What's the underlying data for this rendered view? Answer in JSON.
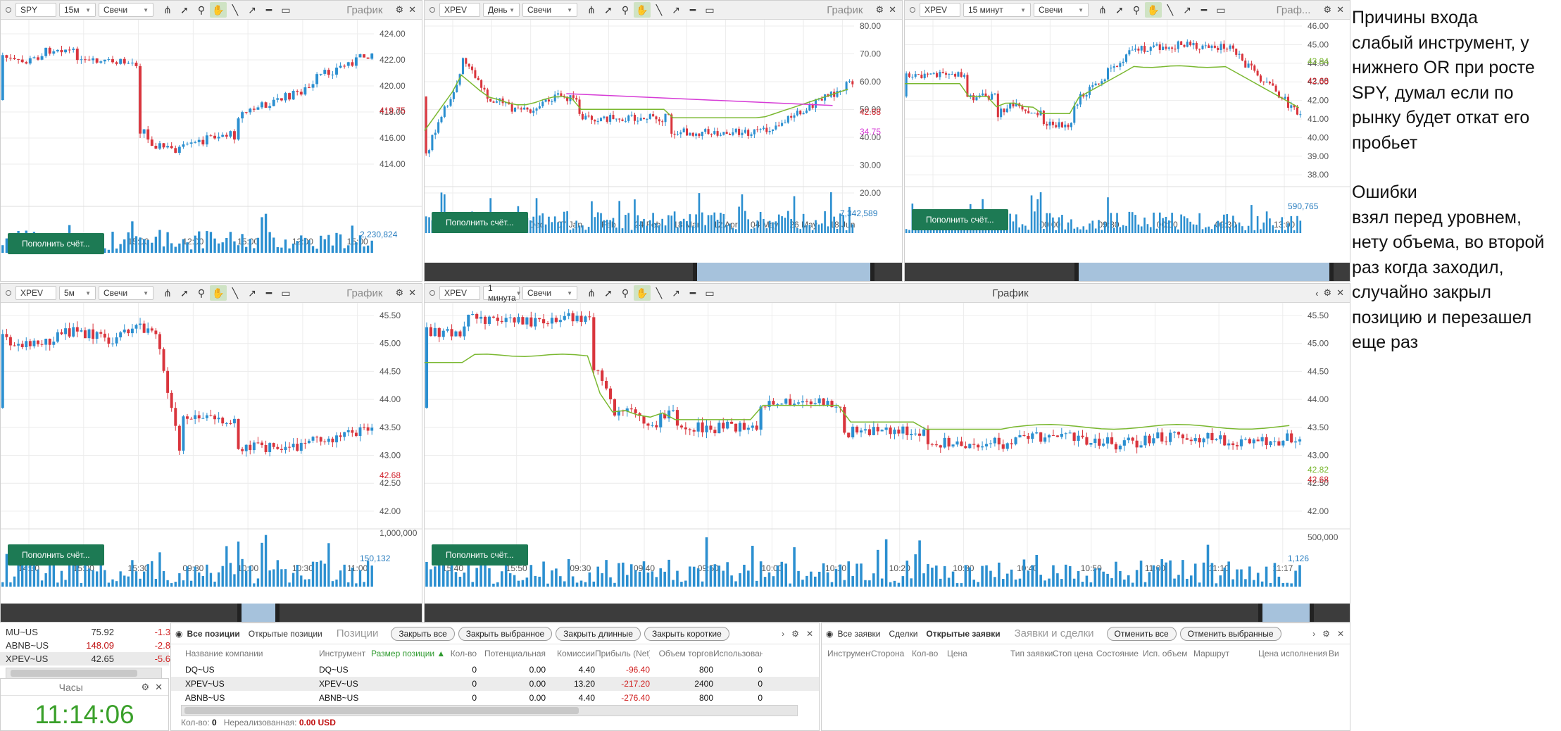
{
  "colors": {
    "up": "#2b8fd0",
    "down": "#d9353d",
    "ma": "#7ab830",
    "magenta": "#d63bd6",
    "volume": "#2b8fd0",
    "deposit_bg": "#1d7a54",
    "price_red": "#d0202a",
    "clock_green": "#3aa02a"
  },
  "deposit_label": "Пополнить счёт...",
  "toolbar_icons": [
    "crosshair-settings-icon",
    "cursor-arrow-icon",
    "magnifier-icon",
    "hand-pan-icon",
    "line-draw-icon",
    "arrow-up-right-icon",
    "hline-icon",
    "rectangle-icon"
  ],
  "charts": [
    {
      "id": "spy15",
      "symbol": "SPY",
      "interval": "15м",
      "style": "Свечи",
      "title": "График",
      "y_ticks": [
        "424.00",
        "422.00",
        "420.00",
        "418.00",
        "416.00",
        "414.00"
      ],
      "price_label": "419.75",
      "volume_label": "2,230,824",
      "x_ticks": [
        "15:00",
        "12:00",
        "15:00",
        "12:00",
        "15:00",
        "12:00",
        "15:00"
      ]
    },
    {
      "id": "xpevD",
      "symbol": "XPEV",
      "interval": "День",
      "style": "Свечи",
      "title": "График",
      "y_ticks": [
        "80.00",
        "70.00",
        "60.00",
        "50.00",
        "40.00",
        "30.00",
        "20.00"
      ],
      "price_label": "42.68",
      "ma_label": "34.75",
      "volume_label": "7,342,589",
      "x_ticks": [
        "28 Oct",
        "19 Nov",
        "14 Dec",
        "07 Jan",
        "Feb",
        "24 Feb",
        "18 Mar",
        "12 Apr",
        "04 May",
        "26 May",
        "18 Jun"
      ]
    },
    {
      "id": "xpev15",
      "symbol": "XPEV",
      "interval": "15 минут",
      "style": "Свечи",
      "title": "Граф...",
      "y_ticks": [
        "46.00",
        "45.00",
        "44.00",
        "43.00",
        "42.00",
        "41.00",
        "40.00",
        "39.00",
        "38.00"
      ],
      "price_label": "42.68",
      "ma_label": "43.94",
      "volume_label": "590,765",
      "x_ticks": [
        "12:00",
        "12:00",
        "00:00",
        "09:30",
        "00:00",
        "09:30",
        "13:00"
      ]
    },
    {
      "id": "xpev5",
      "symbol": "XPEV",
      "interval": "5м",
      "style": "Свечи",
      "title": "График",
      "y_ticks": [
        "45.50",
        "45.00",
        "44.50",
        "44.00",
        "43.50",
        "43.00",
        "42.50",
        "42.00"
      ],
      "price_label": "42.68",
      "volume_label": "150,132",
      "volume_top": "1,000,000",
      "x_ticks": [
        "14:30",
        "15:00",
        "15:30",
        "09:30",
        "10:00",
        "10:30",
        "11:00"
      ]
    },
    {
      "id": "xpev1",
      "symbol": "XPEV",
      "interval": "1 минута",
      "style": "Свечи",
      "title": "График",
      "y_ticks": [
        "45.50",
        "45.00",
        "44.50",
        "44.00",
        "43.50",
        "43.00",
        "42.50",
        "42.00"
      ],
      "price_label": "42.68",
      "ma_label": "42.82",
      "volume_label": "1,126",
      "volume_top": "500,000",
      "x_ticks": [
        "15:40",
        "15:50",
        "09:30",
        "09:40",
        "09:50",
        "10:00",
        "10:10",
        "10:20",
        "10:30",
        "10:40",
        "10:50",
        "11:00",
        "11:10",
        "11:17"
      ]
    }
  ],
  "note": {
    "lines1": [
      "Причины входа",
      "слабый инструмент, у",
      "нижнего OR при росте",
      "SPY, думал если по",
      "рынку будет откат его",
      "пробьет"
    ],
    "lines2": [
      "Ошибки",
      "взял перед уровнем,",
      "нету объема, во второй",
      "раз когда заходил,",
      "случайно закрыл",
      "позицию и перезашел",
      "еще раз"
    ]
  },
  "watchlist": [
    {
      "sym": "MU~US",
      "price": "75.92",
      "chg": "-1.3"
    },
    {
      "sym": "ABNB~US",
      "price": "148.09",
      "chg": "-2.8"
    },
    {
      "sym": "XPEV~US",
      "price": "42.65",
      "chg": "-5.6"
    }
  ],
  "clock": {
    "title": "Часы",
    "time": "11:14:06"
  },
  "positions": {
    "tabs": [
      "Все позиции",
      "Открытые позиции"
    ],
    "title": "Позиции",
    "buttons": [
      "Закрыть все",
      "Закрыть выбранное",
      "Закрыть длинные",
      "Закрыть короткие"
    ],
    "columns": [
      "Название компании",
      "Инструмент",
      "Размер позиции ▲",
      "Кол-во",
      "Потенциальная",
      "Комиссии",
      "Прибыль (Net)",
      "Объем торгов",
      "Использована"
    ],
    "rows": [
      {
        "company": "DQ~US",
        "instr": "DQ~US",
        "size": "",
        "qty": "0",
        "pot": "0.00",
        "comm": "4.40",
        "profit": "-96.40",
        "vol": "800",
        "used": "0"
      },
      {
        "company": "XPEV~US",
        "instr": "XPEV~US",
        "size": "",
        "qty": "0",
        "pot": "0.00",
        "comm": "13.20",
        "profit": "-217.20",
        "vol": "2400",
        "used": "0"
      },
      {
        "company": "ABNB~US",
        "instr": "ABNB~US",
        "size": "",
        "qty": "0",
        "pot": "0.00",
        "comm": "4.40",
        "profit": "-276.40",
        "vol": "800",
        "used": "0"
      }
    ],
    "footer": {
      "qty_label": "Кол-во:",
      "qty": "0",
      "unreal_label": "Нереализованная:",
      "unreal": "0.00 USD"
    }
  },
  "orders": {
    "tabs": [
      "Все заявки",
      "Сделки",
      "Открытые заявки"
    ],
    "title": "Заявки и сделки",
    "buttons": [
      "Отменить все",
      "Отменить выбранные"
    ],
    "columns": [
      "Инструмент",
      "Сторона",
      "Кол-во",
      "Цена",
      "Тип заявки",
      "Стоп цена",
      "Состояние",
      "Исп. объем",
      "Маршрут",
      "Цена исполнения",
      "Ви"
    ]
  }
}
